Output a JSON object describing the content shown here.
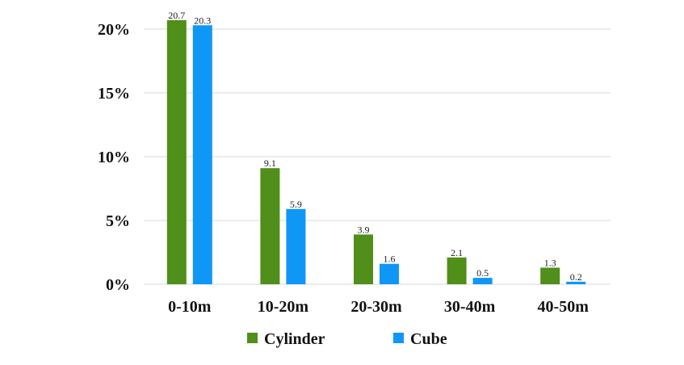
{
  "chart_data": {
    "type": "bar",
    "categories": [
      "0-10m",
      "10-20m",
      "20-30m",
      "30-40m",
      "40-50m"
    ],
    "series": [
      {
        "name": "Cylinder",
        "color": "#4f8f1a",
        "values": [
          20.7,
          9.1,
          3.9,
          2.1,
          1.3
        ],
        "labels": [
          "20.7",
          "9.1",
          "3.9",
          "2.1",
          "1.3"
        ]
      },
      {
        "name": "Cube",
        "color": "#0f97f5",
        "values": [
          20.3,
          5.9,
          1.6,
          0.5,
          0.2
        ],
        "labels": [
          "20.3",
          "5.9",
          "1.6",
          "0.5",
          "0.2"
        ]
      }
    ],
    "ylim": [
      0,
      20
    ],
    "yticks": [
      0,
      5,
      10,
      15,
      20
    ],
    "ytick_labels": [
      "0%",
      "5%",
      "10%",
      "15%",
      "20%"
    ],
    "grid": true,
    "legend": "bottom"
  }
}
